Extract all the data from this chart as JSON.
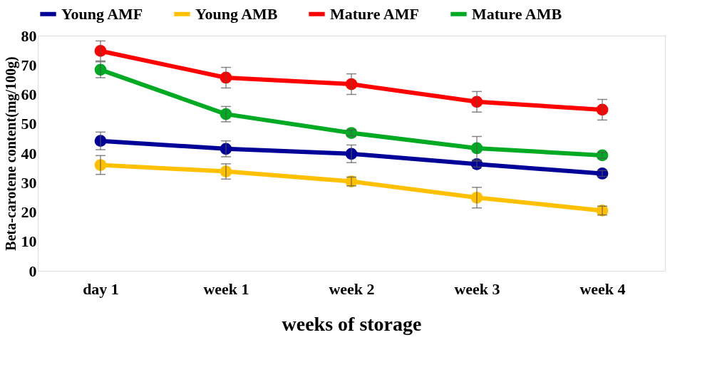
{
  "chart_data": {
    "type": "line",
    "xlabel": "weeks of storage",
    "ylabel": "Beta-carotene content(mg/100g)",
    "categories": [
      "day 1",
      "week 1",
      "week 2",
      "week 3",
      "week 4"
    ],
    "series": [
      {
        "name": "Young AMF",
        "color": "#000099",
        "values": [
          44.2,
          41.5,
          39.8,
          36.3,
          33.1
        ],
        "errors": [
          3,
          2.7,
          3,
          1,
          1
        ]
      },
      {
        "name": "Young AMB",
        "color": "#ffc000",
        "values": [
          36,
          33.8,
          30.4,
          24.9,
          20.5
        ],
        "errors": [
          3.2,
          2.6,
          1.5,
          3.5,
          1.5
        ]
      },
      {
        "name": "Mature AMF",
        "color": "#ff0000",
        "values": [
          74.8,
          65.7,
          63.5,
          57.5,
          54.8
        ],
        "errors": [
          3.4,
          3.5,
          3.5,
          3.5,
          3.5
        ]
      },
      {
        "name": "Mature AMB",
        "color": "#00aa22",
        "values": [
          68.4,
          53.3,
          46.9,
          41.7,
          39.3
        ],
        "errors": [
          2.7,
          2.6,
          1,
          4,
          1
        ]
      }
    ],
    "ylim": [
      0,
      80
    ],
    "yticks": [
      0,
      10,
      20,
      30,
      40,
      50,
      60,
      70,
      80
    ],
    "grid": false,
    "legend": "top",
    "marker": "circle",
    "line_style": "solid"
  }
}
